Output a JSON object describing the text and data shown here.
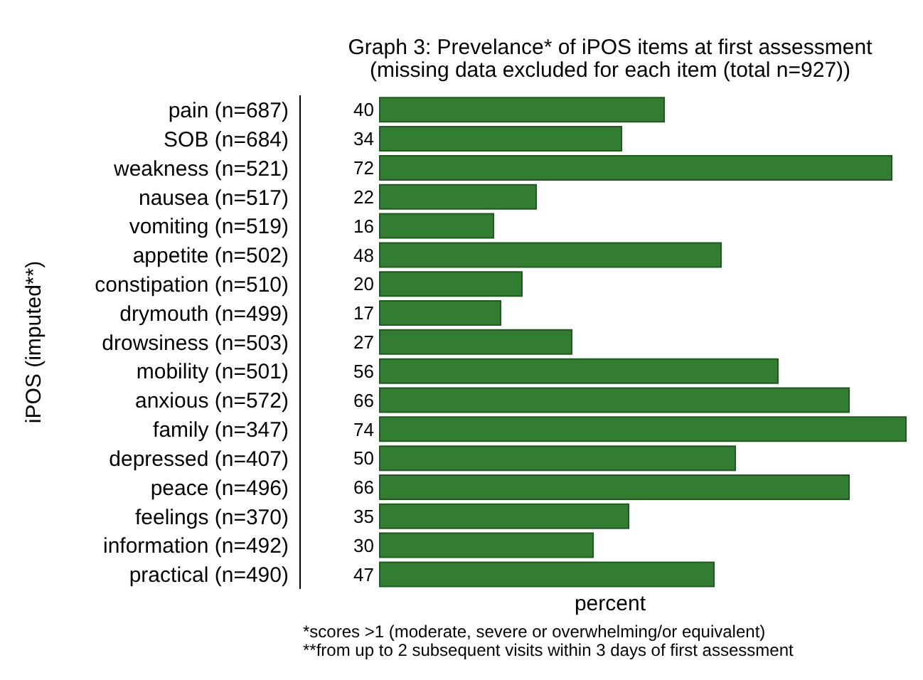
{
  "chart_data": {
    "type": "bar",
    "orientation": "horizontal",
    "title": "Graph 3: Prevelance* of iPOS items at first assessment",
    "subtitle": "(missing data excluded for each item (total n=927))",
    "xlabel": "percent",
    "ylabel": "iPOS (imputed**)",
    "categories": [
      "pain (n=687)",
      "SOB (n=684)",
      "weakness (n=521)",
      "nausea (n=517)",
      "vomiting (n=519)",
      "appetite (n=502)",
      "constipation (n=510)",
      "drymouth (n=499)",
      "drowsiness (n=503)",
      "mobility (n=501)",
      "anxious (n=572)",
      "family (n=347)",
      "depressed (n=407)",
      "peace (n=496)",
      "feelings (n=370)",
      "information (n=492)",
      "practical (n=490)"
    ],
    "values": [
      40,
      34,
      72,
      22,
      16,
      48,
      20,
      17,
      27,
      56,
      66,
      74,
      50,
      66,
      35,
      30,
      47
    ],
    "color": "#327d32",
    "data_labels": true,
    "tick_labels": "y",
    "annotations": [
      "*scores >1 (moderate, severe or overwhelming/or equivalent)",
      "**from up to 2 subsequent visits within 3 days of first assessment"
    ]
  }
}
